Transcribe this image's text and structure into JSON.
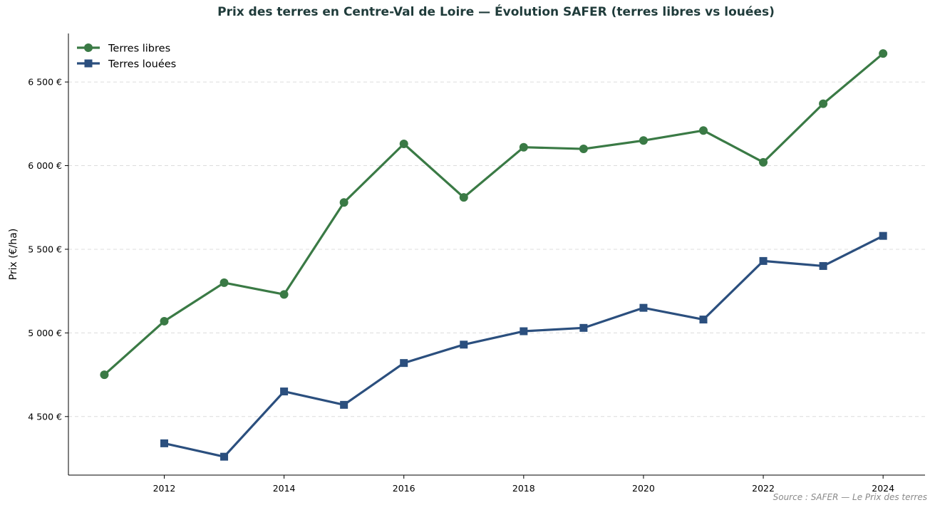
{
  "chart_data": {
    "type": "line",
    "title": "Prix des terres en Centre-Val de Loire — Évolution SAFER (terres libres vs louées)",
    "ylabel": "Prix (€/ha)",
    "xlabel": "",
    "xlim": [
      2010.4,
      2024.7
    ],
    "ylim": [
      4150,
      6790
    ],
    "x_ticks": [
      2012,
      2014,
      2016,
      2018,
      2020,
      2022,
      2024
    ],
    "x_tick_labels": [
      "2012",
      "2014",
      "2016",
      "2018",
      "2020",
      "2022",
      "2024"
    ],
    "y_ticks": [
      4500,
      5000,
      5500,
      6000,
      6500
    ],
    "y_tick_labels": [
      "4 500 €",
      "5 000 €",
      "5 500 €",
      "6 000 €",
      "6 500 €"
    ],
    "grid": "horizontal dashed",
    "legend_position": "top-left",
    "source": "Source : SAFER — Le Prix des terres",
    "series": [
      {
        "name": "Terres libres",
        "color": "#3a7a45",
        "marker": "circle",
        "x": [
          2011,
          2012,
          2013,
          2014,
          2015,
          2016,
          2017,
          2018,
          2019,
          2020,
          2021,
          2022,
          2023,
          2024
        ],
        "values": [
          4750,
          5070,
          5300,
          5230,
          5780,
          6130,
          5810,
          6110,
          6100,
          6150,
          6210,
          6020,
          6370,
          6670
        ]
      },
      {
        "name": "Terres louées",
        "color": "#2b4f7e",
        "marker": "square",
        "x": [
          2012,
          2013,
          2014,
          2015,
          2016,
          2017,
          2018,
          2019,
          2020,
          2021,
          2022,
          2023,
          2024
        ],
        "values": [
          4340,
          4260,
          4650,
          4570,
          4820,
          4930,
          5010,
          5030,
          5150,
          5080,
          5430,
          5400,
          5580
        ]
      }
    ]
  }
}
